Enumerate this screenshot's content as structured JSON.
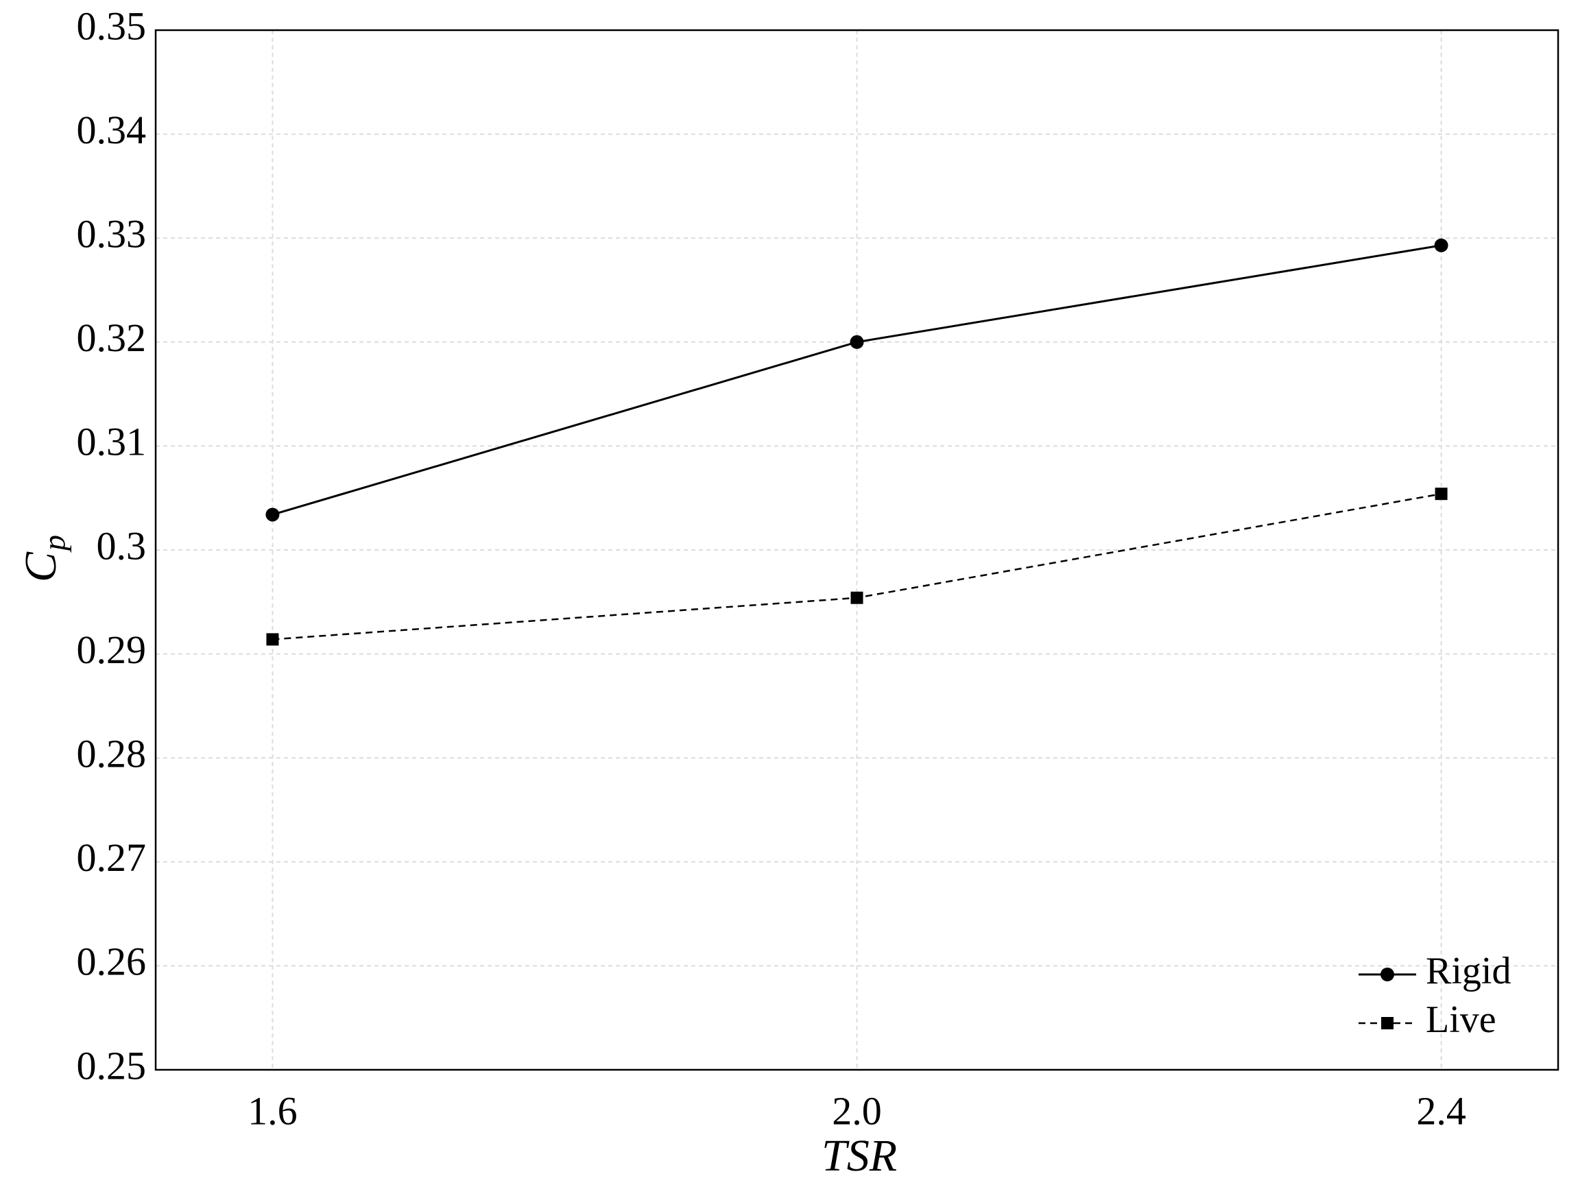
{
  "chart_data": {
    "type": "line",
    "xlabel": "TSR",
    "ylabel": "C",
    "ylabel_subscript": "p",
    "x": [
      1.6,
      2.0,
      2.4
    ],
    "series": [
      {
        "name": "Rigid",
        "color": "#000000",
        "marker": "circle",
        "dashed": false,
        "values": [
          0.3034,
          0.32,
          0.3293
        ]
      },
      {
        "name": "Live",
        "color": "#000000",
        "marker": "square",
        "dashed": true,
        "values": [
          0.2914,
          0.2954,
          0.3054
        ]
      }
    ],
    "xlim": [
      1.52,
      2.48
    ],
    "xticks": [
      1.6,
      {
        "value": 2,
        "label": "2.0"
      },
      2.4
    ],
    "ylim": [
      0.25,
      0.35
    ],
    "yticks": [
      0.25,
      0.26,
      0.27,
      0.28,
      0.29,
      0.3,
      0.31,
      0.32,
      0.33,
      0.34,
      0.35
    ],
    "grid": true,
    "legend_position": "lower-right"
  }
}
